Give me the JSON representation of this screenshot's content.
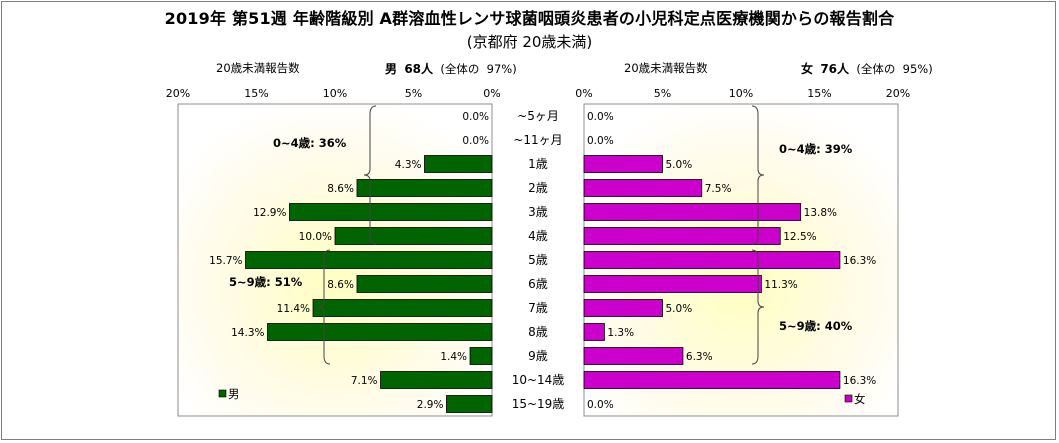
{
  "title": "2019年 第51週 年齢階級別 A群溶血性レンサ球菌咽頭炎患者の小児科定点医療機関からの報告割合",
  "subtitle": "(京都府 20歳未満)",
  "left_header": {
    "caption": "20歳未満報告数",
    "sex": "男",
    "count": "68人",
    "share_prefix": "(全体の",
    "share_value": "97%)"
  },
  "right_header": {
    "caption": "20歳未満報告数",
    "sex": "女",
    "count": "76人",
    "share_prefix": "(全体の",
    "share_value": "95%)"
  },
  "chart_data": {
    "type": "bar",
    "orientation": "horizontal",
    "categories": [
      "~5ヶ月",
      "~11ヶ月",
      "1歳",
      "2歳",
      "3歳",
      "4歳",
      "5歳",
      "6歳",
      "7歳",
      "8歳",
      "9歳",
      "10~14歳",
      "15~19歳"
    ],
    "series": [
      {
        "name": "男",
        "color": "#006400",
        "values": [
          0.0,
          0.0,
          4.3,
          8.6,
          12.9,
          10.0,
          15.7,
          8.6,
          11.4,
          14.3,
          1.4,
          7.1,
          2.9
        ],
        "labels": [
          "0.0%",
          "0.0%",
          "4.3%",
          "8.6%",
          "12.9%",
          "10.0%",
          "15.7%",
          "8.6%",
          "11.4%",
          "14.3%",
          "1.4%",
          "7.1%",
          "2.9%"
        ]
      },
      {
        "name": "女",
        "color": "#cc00cc",
        "values": [
          0.0,
          0.0,
          5.0,
          7.5,
          13.8,
          12.5,
          16.3,
          11.3,
          5.0,
          1.3,
          6.3,
          16.3,
          0.0
        ],
        "labels": [
          "0.0%",
          "0.0%",
          "5.0%",
          "7.5%",
          "13.8%",
          "12.5%",
          "16.3%",
          "11.3%",
          "5.0%",
          "1.3%",
          "6.3%",
          "16.3%",
          "0.0%"
        ]
      }
    ],
    "axis": {
      "range": [
        0,
        20
      ],
      "ticks": [
        0,
        5,
        10,
        15,
        20
      ],
      "left_tick_labels": [
        "20%",
        "15%",
        "10%",
        "5%",
        "0%"
      ],
      "right_tick_labels": [
        "0%",
        "5%",
        "10%",
        "15%",
        "20%"
      ]
    },
    "group_annotations": {
      "left_0_4": "0~4歳: 36%",
      "left_5_9": "5~9歳: 51%",
      "right_0_4": "0~4歳: 39%",
      "right_5_9": "5~9歳: 40%"
    },
    "legend": {
      "male": "男",
      "female": "女",
      "placement": "bottom-left / bottom-right"
    },
    "grid": false
  }
}
